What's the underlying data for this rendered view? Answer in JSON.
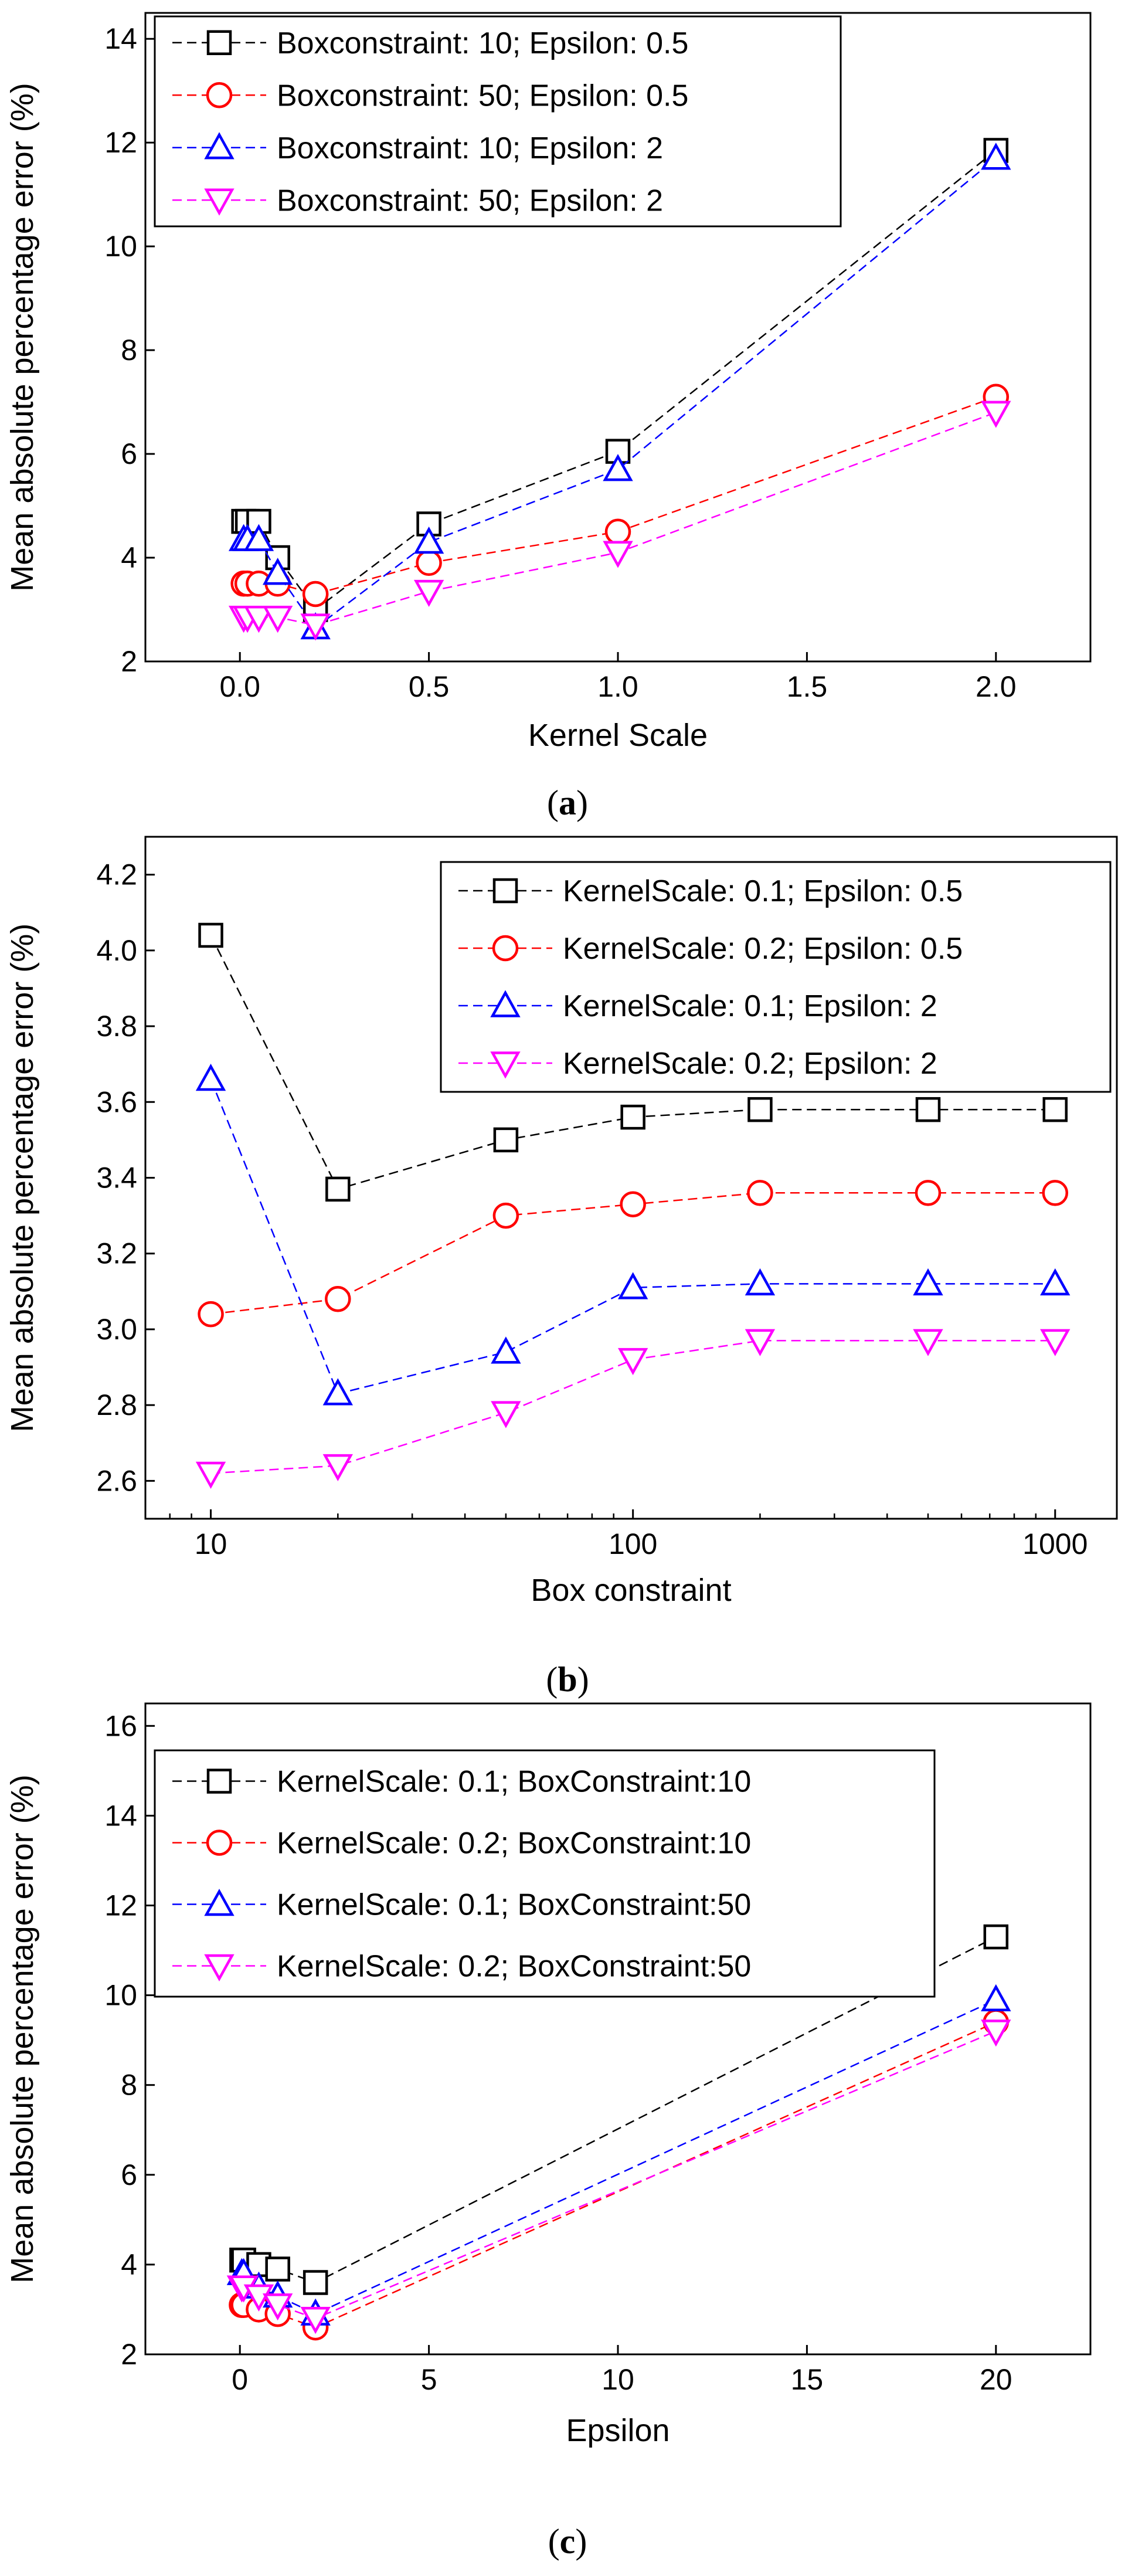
{
  "chart_data": [
    {
      "id": "a",
      "type": "line",
      "caption_letter": "a",
      "xlabel": "Kernel Scale",
      "ylabel": "Mean absolute percentage error (%)",
      "xscale": "linear",
      "xlim": [
        -0.25,
        2.25
      ],
      "ylim": [
        2,
        14.5
      ],
      "xticks": [
        0.0,
        0.5,
        1.0,
        1.5,
        2.0
      ],
      "xtick_labels": [
        "0.0",
        "0.5",
        "1.0",
        "1.5",
        "2.0"
      ],
      "yticks": [
        2,
        4,
        6,
        8,
        10,
        12,
        14
      ],
      "ytick_labels": [
        "2",
        "4",
        "6",
        "8",
        "10",
        "12",
        "14"
      ],
      "legend_position": "top-left",
      "x": [
        0.01,
        0.02,
        0.05,
        0.1,
        0.2,
        0.5,
        1.0,
        2.0
      ],
      "series": [
        {
          "name": "Boxconstraint: 10; Epsilon: 0.5",
          "color": "#000000",
          "marker": "square",
          "values": [
            4.7,
            4.7,
            4.7,
            4.0,
            3.0,
            4.65,
            6.05,
            11.85
          ]
        },
        {
          "name": "Boxconstraint: 50; Epsilon: 0.5",
          "color": "#ff0000",
          "marker": "circle",
          "values": [
            3.5,
            3.5,
            3.5,
            3.5,
            3.3,
            3.9,
            4.5,
            7.1
          ]
        },
        {
          "name": "Boxconstraint: 10; Epsilon: 2",
          "color": "#0000ff",
          "marker": "triangle-up",
          "values": [
            4.35,
            4.35,
            4.35,
            3.7,
            2.65,
            4.3,
            5.7,
            11.7
          ]
        },
        {
          "name": "Boxconstraint: 50; Epsilon: 2",
          "color": "#ff00ff",
          "marker": "triangle-down",
          "values": [
            2.85,
            2.85,
            2.85,
            2.85,
            2.7,
            3.35,
            4.1,
            6.8
          ]
        }
      ]
    },
    {
      "id": "b",
      "type": "line",
      "caption_letter": "b",
      "xlabel": "Box constraint",
      "ylabel": "Mean absolute percentage error (%)",
      "xscale": "log",
      "xlim": [
        7,
        1400
      ],
      "ylim": [
        2.5,
        4.3
      ],
      "xticks": [
        10,
        100,
        1000
      ],
      "xtick_labels": [
        "10",
        "100",
        "1000"
      ],
      "yticks": [
        2.6,
        2.8,
        3.0,
        3.2,
        3.4,
        3.6,
        3.8,
        4.0,
        4.2
      ],
      "ytick_labels": [
        "2.6",
        "2.8",
        "3.0",
        "3.2",
        "3.4",
        "3.6",
        "3.8",
        "4.0",
        "4.2"
      ],
      "legend_position": "top-right",
      "x": [
        10,
        20,
        50,
        100,
        200,
        500,
        1000
      ],
      "series": [
        {
          "name": "KernelScale: 0.1; Epsilon: 0.5",
          "color": "#000000",
          "marker": "square",
          "values": [
            4.04,
            3.37,
            3.5,
            3.56,
            3.58,
            3.58,
            3.58
          ]
        },
        {
          "name": "KernelScale: 0.2; Epsilon: 0.5",
          "color": "#ff0000",
          "marker": "circle",
          "values": [
            3.04,
            3.08,
            3.3,
            3.33,
            3.36,
            3.36,
            3.36
          ]
        },
        {
          "name": "KernelScale: 0.1; Epsilon: 2",
          "color": "#0000ff",
          "marker": "triangle-up",
          "values": [
            3.66,
            2.83,
            2.94,
            3.11,
            3.12,
            3.12,
            3.12
          ]
        },
        {
          "name": "KernelScale: 0.2; Epsilon: 2",
          "color": "#ff00ff",
          "marker": "triangle-down",
          "values": [
            2.62,
            2.64,
            2.78,
            2.92,
            2.97,
            2.97,
            2.97
          ]
        }
      ]
    },
    {
      "id": "c",
      "type": "line",
      "caption_letter": "c",
      "xlabel": "Epsilon",
      "ylabel": "Mean absolute percentage error (%)",
      "xscale": "linear",
      "xlim": [
        -2.5,
        22.5
      ],
      "ylim": [
        2,
        16.5
      ],
      "xticks": [
        0,
        5,
        10,
        15,
        20
      ],
      "xtick_labels": [
        "0",
        "5",
        "10",
        "15",
        "20"
      ],
      "yticks": [
        2,
        4,
        6,
        8,
        10,
        12,
        14,
        16
      ],
      "ytick_labels": [
        "2",
        "4",
        "6",
        "8",
        "10",
        "12",
        "14",
        "16"
      ],
      "legend_position": "top-left",
      "x": [
        0.05,
        0.1,
        0.5,
        1.0,
        2.0,
        20.0
      ],
      "series": [
        {
          "name": "KernelScale: 0.1; BoxConstraint:10",
          "color": "#000000",
          "marker": "square",
          "values": [
            4.1,
            4.1,
            4.0,
            3.9,
            3.6,
            11.3
          ]
        },
        {
          "name": "KernelScale: 0.2; BoxConstraint:10",
          "color": "#ff0000",
          "marker": "circle",
          "values": [
            3.1,
            3.1,
            3.0,
            2.9,
            2.6,
            9.4
          ]
        },
        {
          "name": "KernelScale: 0.1; BoxConstraint:50",
          "color": "#0000ff",
          "marker": "triangle-up",
          "values": [
            3.8,
            3.8,
            3.5,
            3.3,
            2.9,
            9.9
          ]
        },
        {
          "name": "KernelScale: 0.2; BoxConstraint:50",
          "color": "#ff00ff",
          "marker": "triangle-down",
          "values": [
            3.5,
            3.5,
            3.3,
            3.1,
            2.8,
            9.2
          ]
        }
      ]
    }
  ]
}
